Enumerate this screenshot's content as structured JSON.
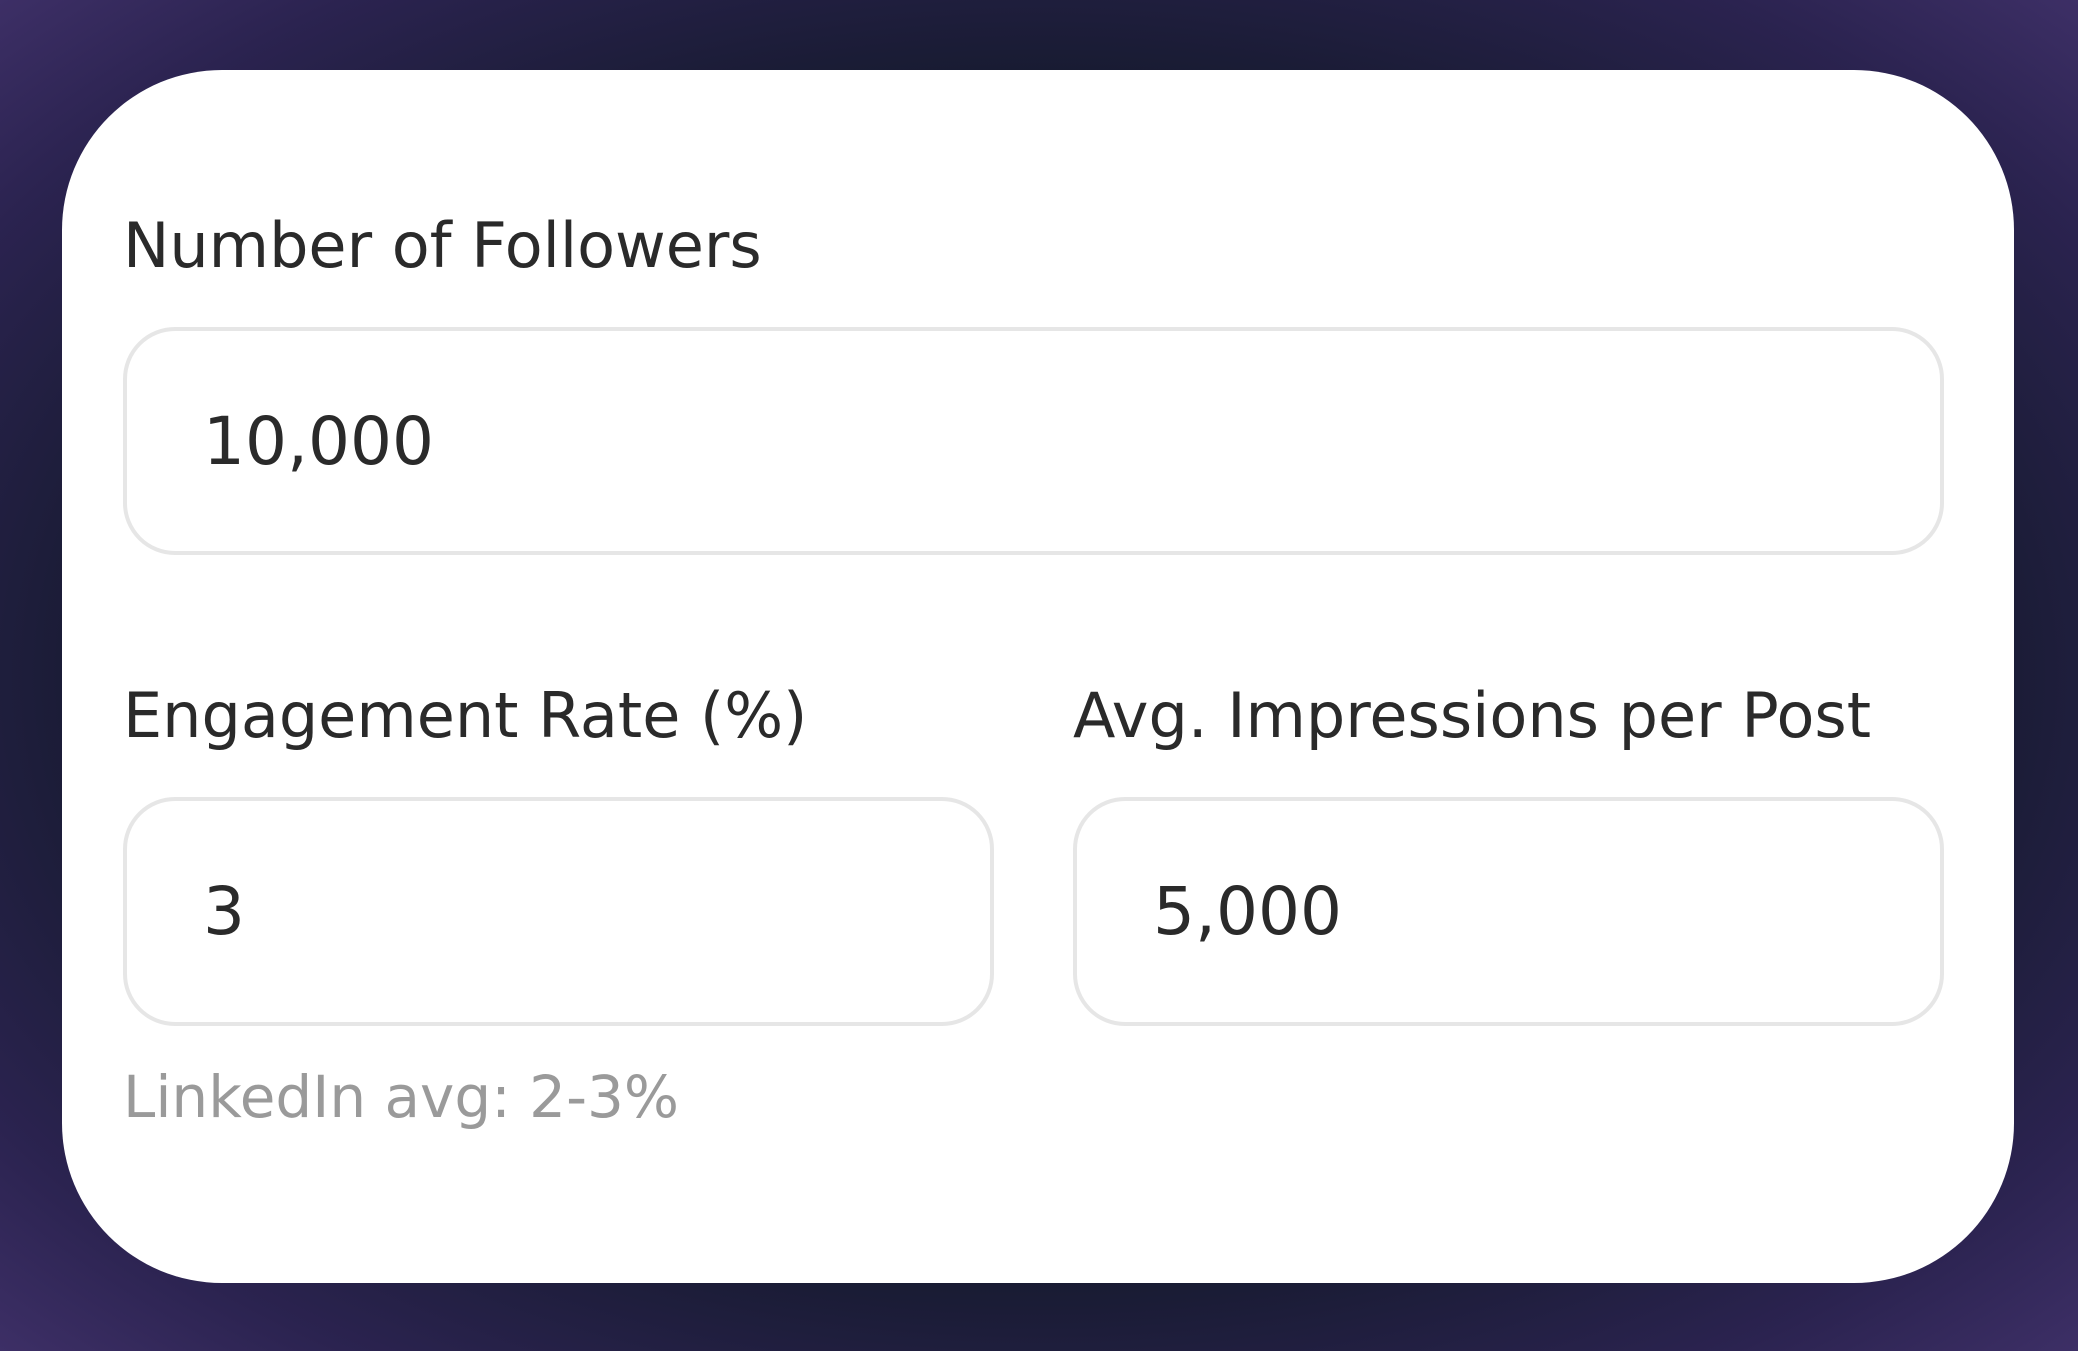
{
  "form": {
    "fields": [
      {
        "label": "Number of Followers",
        "value": "10,000"
      },
      {
        "label": "Engagement Rate (%)",
        "value": "3",
        "hint": "LinkedIn avg: 2-3%"
      },
      {
        "label": "Avg. Impressions per Post",
        "value": "5,000"
      }
    ]
  }
}
